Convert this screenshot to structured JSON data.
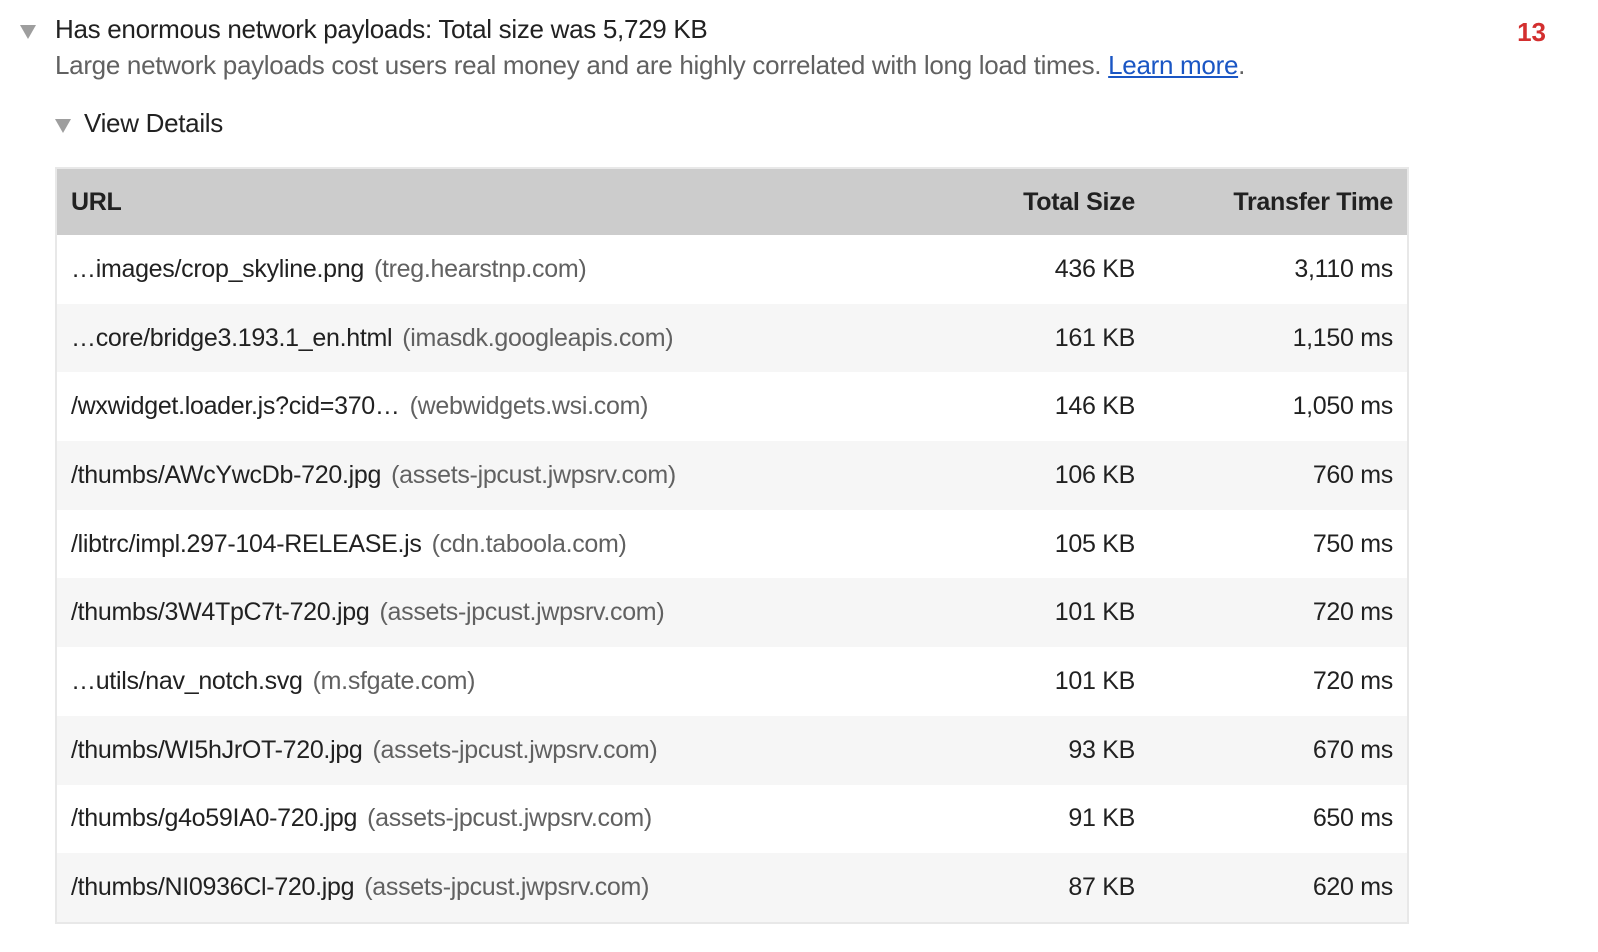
{
  "audit": {
    "title": "Has enormous network payloads: Total size was 5,729 KB",
    "description": "Large network payloads cost users real money and are highly correlated with long load times.",
    "learn_more": "Learn more",
    "score": "13",
    "score_color": "#d32f2f"
  },
  "details": {
    "label": "View Details",
    "columns": [
      "URL",
      "Total Size",
      "Transfer Time"
    ],
    "rows": [
      {
        "url": "…images/crop_skyline.png",
        "host": "(treg.hearstnp.com)",
        "size": "436 KB",
        "time": "3,110 ms"
      },
      {
        "url": "…core/bridge3.193.1_en.html",
        "host": "(imasdk.googleapis.com)",
        "size": "161 KB",
        "time": "1,150 ms"
      },
      {
        "url": "/wxwidget.loader.js?cid=370…",
        "host": "(webwidgets.wsi.com)",
        "size": "146 KB",
        "time": "1,050 ms"
      },
      {
        "url": "/thumbs/AWcYwcDb-720.jpg",
        "host": "(assets-jpcust.jwpsrv.com)",
        "size": "106 KB",
        "time": "760 ms"
      },
      {
        "url": "/libtrc/impl.297-104-RELEASE.js",
        "host": "(cdn.taboola.com)",
        "size": "105 KB",
        "time": "750 ms"
      },
      {
        "url": "/thumbs/3W4TpC7t-720.jpg",
        "host": "(assets-jpcust.jwpsrv.com)",
        "size": "101 KB",
        "time": "720 ms"
      },
      {
        "url": "…utils/nav_notch.svg",
        "host": "(m.sfgate.com)",
        "size": "101 KB",
        "time": "720 ms"
      },
      {
        "url": "/thumbs/WI5hJrOT-720.jpg",
        "host": "(assets-jpcust.jwpsrv.com)",
        "size": "93 KB",
        "time": "670 ms"
      },
      {
        "url": "/thumbs/g4o59IA0-720.jpg",
        "host": "(assets-jpcust.jwpsrv.com)",
        "size": "91 KB",
        "time": "650 ms"
      },
      {
        "url": "/thumbs/NI0936Cl-720.jpg",
        "host": "(assets-jpcust.jwpsrv.com)",
        "size": "87 KB",
        "time": "620 ms"
      }
    ]
  }
}
